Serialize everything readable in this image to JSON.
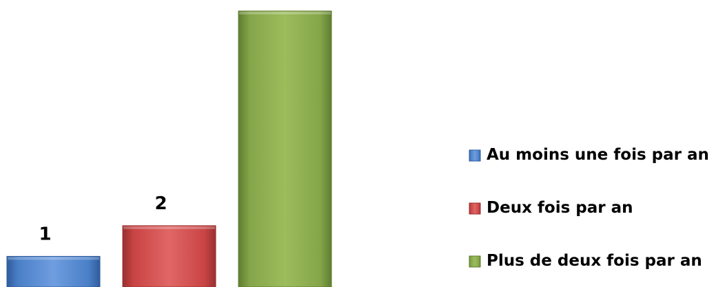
{
  "chart_data": {
    "type": "bar",
    "categories": [
      "Au moins une fois par an",
      "Deux fois par an",
      "Plus de deux fois par an"
    ],
    "values": [
      1,
      2,
      9
    ],
    "data_labels": [
      "1",
      "2",
      ""
    ],
    "ylim": [
      0,
      9
    ],
    "grid": false,
    "legend": "right",
    "colors": [
      "#4a7fc7",
      "#c94444",
      "#84a549"
    ],
    "colors_light": [
      "#6f9de0",
      "#e06666",
      "#9cbc5c"
    ],
    "colors_dark": [
      "#2f5c9c",
      "#993030",
      "#5f7d30"
    ]
  }
}
